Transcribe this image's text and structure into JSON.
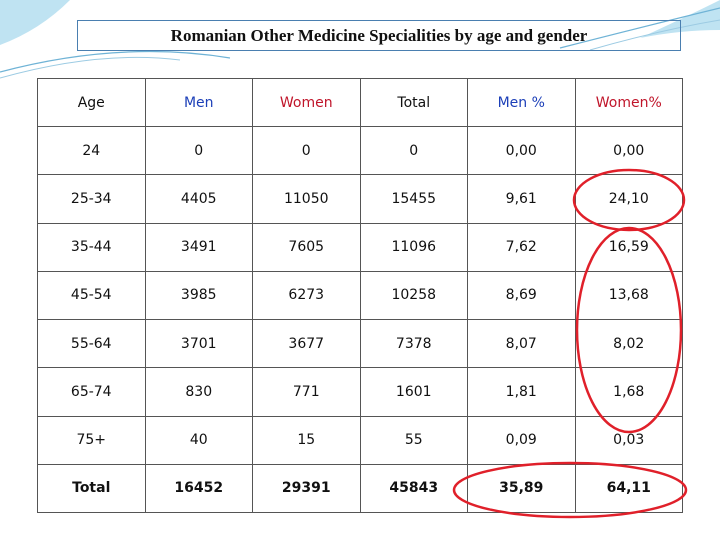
{
  "title": "Romanian Other Medicine Specialities by age and gender",
  "table": {
    "header": [
      "Age",
      "Men",
      "Women",
      "Total",
      "Men %",
      "Women%"
    ],
    "rows": [
      [
        "24",
        "0",
        "0",
        "0",
        "0,00",
        "0,00"
      ],
      [
        "25-34",
        "4405",
        "11050",
        "15455",
        "9,61",
        "24,10"
      ],
      [
        "35-44",
        "3491",
        "7605",
        "11096",
        "7,62",
        "16,59"
      ],
      [
        "45-54",
        "3985",
        "6273",
        "10258",
        "8,69",
        "13,68"
      ],
      [
        "55-64",
        "3701",
        "3677",
        "7378",
        "8,07",
        "8,02"
      ],
      [
        "65-74",
        "830",
        "771",
        "1601",
        "1,81",
        "1,68"
      ],
      [
        "75+",
        "40",
        "15",
        "55",
        "0,09",
        "0,03"
      ],
      [
        "Total",
        "16452",
        "29391",
        "45843",
        "35,89",
        "64,11"
      ]
    ]
  }
}
